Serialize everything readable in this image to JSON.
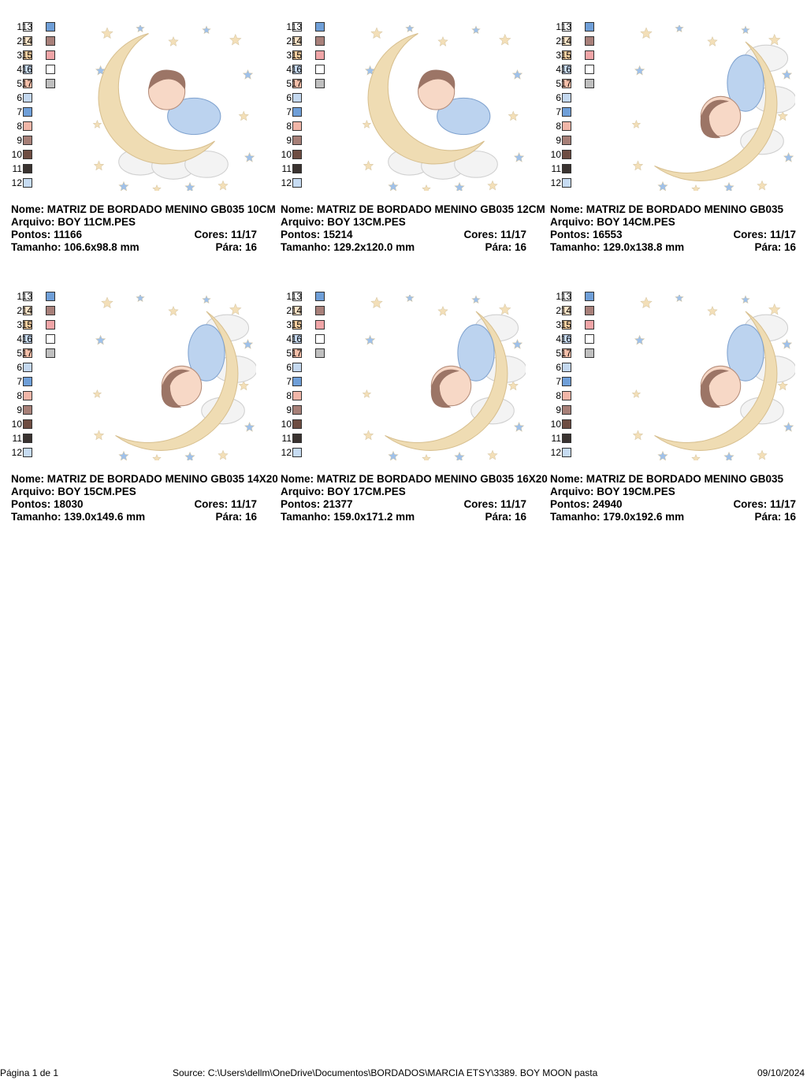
{
  "palette_colors": [
    "#ffffff",
    "#fbe3c6",
    "#f6cfa0",
    "#c6d9f1",
    "#f7c0aa",
    "#c4d8ef",
    "#6f9fd8",
    "#f1b6a8",
    "#a67f77",
    "#6e4d42",
    "#3a3330",
    "#c7dcf3",
    "#6f9fd8",
    "#a8807a",
    "#f0a5a7",
    "#ffffff",
    "#bfbfbf"
  ],
  "labels": {
    "name": "Nome:",
    "file": "Arquivo:",
    "points": "Pontos:",
    "colors": "Cores:",
    "size": "Tamanho:",
    "stops": "Pára:"
  },
  "designs": [
    {
      "name": "MATRIZ DE BORDADO MENINO GB035 10CM",
      "file": "BOY 11CM.PES",
      "points": "11166",
      "colors": "11/17",
      "size": "106.6x98.8 mm",
      "stops": "16",
      "pose": "moon-left"
    },
    {
      "name": "MATRIZ DE BORDADO MENINO GB035 12CM",
      "file": "BOY 13CM.PES",
      "points": "15214",
      "colors": "11/17",
      "size": "129.2x120.0 mm",
      "stops": "16",
      "pose": "moon-left"
    },
    {
      "name": "MATRIZ DE BORDADO MENINO GB035",
      "file": "BOY 14CM.PES",
      "points": "16553",
      "colors": "11/17",
      "size": "129.0x138.8 mm",
      "stops": "16",
      "pose": "moon-right"
    },
    {
      "name": "MATRIZ DE BORDADO MENINO GB035 14X20",
      "file": "BOY 15CM.PES",
      "points": "18030",
      "colors": "11/17",
      "size": "139.0x149.6 mm",
      "stops": "16",
      "pose": "moon-right"
    },
    {
      "name": "MATRIZ DE BORDADO MENINO GB035 16X20",
      "file": "BOY 17CM.PES",
      "points": "21377",
      "colors": "11/17",
      "size": "159.0x171.2 mm",
      "stops": "16",
      "pose": "moon-right"
    },
    {
      "name": "MATRIZ DE BORDADO MENINO GB035",
      "file": "BOY 19CM.PES",
      "points": "24940",
      "colors": "11/17",
      "size": "179.0x192.6 mm",
      "stops": "16",
      "pose": "moon-right"
    }
  ],
  "footer": {
    "page": "Página 1 de 1",
    "source": "Source: C:\\Users\\dellm\\OneDrive\\Documentos\\BORDADOS\\MARCIA ETSY\\3389. BOY MOON pasta",
    "date": "09/10/2024"
  }
}
